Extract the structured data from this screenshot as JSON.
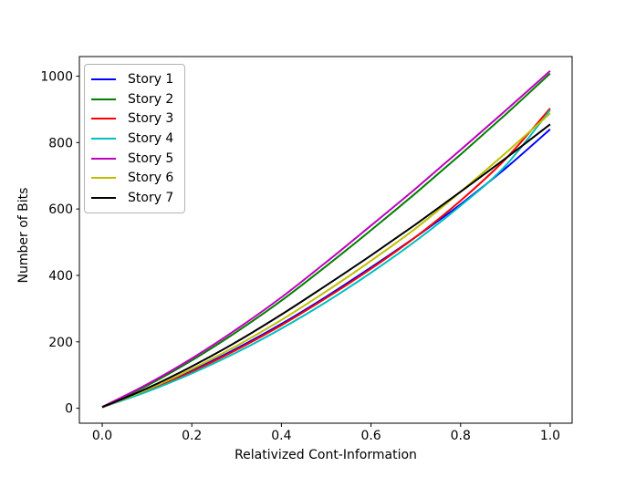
{
  "figure": {
    "background": "#ffffff"
  },
  "chart_data": {
    "type": "line",
    "title": "",
    "xlabel": "Relativized Cont-Information",
    "ylabel": "Number of Bits",
    "x_tick_values": [
      0.0,
      0.2,
      0.4,
      0.6,
      0.8,
      1.0
    ],
    "x_tick_labels": [
      "0.0",
      "0.2",
      "0.4",
      "0.6",
      "0.8",
      "1.0"
    ],
    "y_tick_values": [
      0,
      200,
      400,
      600,
      800,
      1000
    ],
    "y_tick_labels": [
      "0",
      "200",
      "400",
      "600",
      "800",
      "1000"
    ],
    "xlim": [
      -0.051,
      1.049
    ],
    "ylim": [
      -45,
      1059
    ],
    "grid": false,
    "line_width": 2,
    "legend": {
      "position": "upper left"
    },
    "x": [
      0,
      0.1,
      0.2,
      0.3,
      0.4,
      0.5,
      0.6,
      0.7,
      0.8,
      0.9,
      1.0
    ],
    "series": [
      {
        "name": "Story 1",
        "color": "#0000ff",
        "values": [
          3,
          54,
          113,
          180,
          254,
          336,
          424,
          516,
          614,
          722,
          840
        ]
      },
      {
        "name": "Story 2",
        "color": "#008000",
        "values": [
          4,
          68,
          144,
          230,
          324,
          428,
          536,
          648,
          764,
          884,
          1008
        ]
      },
      {
        "name": "Story 3",
        "color": "#ff0000",
        "values": [
          3,
          52,
          110,
          176,
          250,
          332,
          420,
          516,
          625,
          750,
          903
        ]
      },
      {
        "name": "Story 4",
        "color": "#00bfbf",
        "values": [
          3,
          50,
          105,
          168,
          240,
          320,
          408,
          504,
          610,
          730,
          898
        ]
      },
      {
        "name": "Story 5",
        "color": "#bf00bf",
        "values": [
          4,
          72,
          150,
          238,
          334,
          440,
          550,
          662,
          778,
          896,
          1016
        ]
      },
      {
        "name": "Story 6",
        "color": "#bfbf00",
        "values": [
          3,
          56,
          118,
          188,
          266,
          352,
          444,
          542,
          652,
          768,
          888
        ]
      },
      {
        "name": "Story 7",
        "color": "#000000",
        "values": [
          3,
          60,
          126,
          200,
          282,
          370,
          460,
          554,
          652,
          752,
          855
        ]
      }
    ]
  }
}
